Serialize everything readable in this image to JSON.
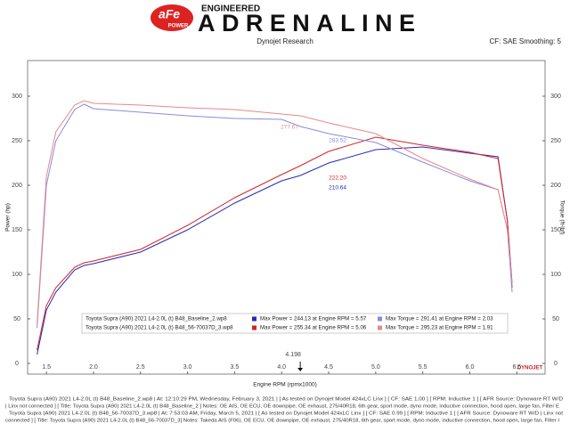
{
  "header": {
    "brand": "aFe",
    "brand_sub": "POWER",
    "tagline": "ENGINEERED",
    "title": "ADRENALINE"
  },
  "chart_data": {
    "type": "line",
    "title": "Dynojet Research",
    "subtitle": "CF: SAE Smoothing: 5",
    "x_label": "Engine RPM (rpmx1000)",
    "y_label": "Power (hp)",
    "y2_label": "Torque (ft-lbf)",
    "brand_mark": "DYNOJET",
    "x": [
      1.4,
      1.5,
      1.6,
      1.8,
      1.9,
      2.0,
      2.5,
      3.0,
      3.5,
      4.0,
      4.2,
      4.5,
      5.0,
      5.5,
      6.0,
      6.3,
      6.4,
      6.45
    ],
    "series": [
      {
        "color": "#2a2ab4",
        "values": [
          10,
          60,
          80,
          105,
          110,
          112,
          125,
          150,
          180,
          205,
          211,
          225,
          240,
          243,
          236,
          232,
          160,
          90
        ]
      },
      {
        "color": "#d42424",
        "values": [
          15,
          65,
          85,
          108,
          113,
          115,
          128,
          155,
          186,
          212,
          222,
          238,
          254,
          245,
          237,
          230,
          160,
          85
        ]
      },
      {
        "color": "#8a8ade",
        "axis": "y2",
        "values": [
          40,
          200,
          250,
          285,
          291,
          286,
          282,
          278,
          275,
          274,
          266,
          258,
          248,
          226,
          205,
          195,
          150,
          80
        ]
      },
      {
        "color": "#e48a8a",
        "axis": "y2",
        "values": [
          45,
          210,
          260,
          290,
          295,
          292,
          290,
          287,
          285,
          280,
          278,
          270,
          258,
          230,
          207,
          195,
          150,
          90
        ]
      }
    ],
    "xlim": [
      1.3,
      6.8
    ],
    "ylim": [
      -12,
      340
    ],
    "y2lim": [
      -12,
      340
    ],
    "xticks": [
      {
        "value": 1.5,
        "label": "1.5"
      },
      {
        "value": 2,
        "label": "2.0"
      },
      {
        "value": 2.5,
        "label": "2.5"
      },
      {
        "value": 3,
        "label": "3.0"
      },
      {
        "value": 3.5,
        "label": "3.5"
      },
      {
        "value": 4,
        "label": "4.0"
      },
      {
        "value": 4.5,
        "label": "4.5"
      },
      {
        "value": 5,
        "label": "5.0"
      },
      {
        "value": 5.5,
        "label": "5.5"
      },
      {
        "value": 6,
        "label": "6.0"
      },
      {
        "value": 6.5,
        "label": "6.5"
      }
    ],
    "yticks": [
      0,
      50,
      100,
      150,
      200,
      250,
      300
    ],
    "y2ticks": [
      0,
      50,
      100,
      150,
      200,
      250,
      300
    ],
    "cursor": 4.198,
    "readouts": [
      {
        "value": 277.67,
        "label": "277.67"
      },
      {
        "value": 283.52,
        "label": "283.52"
      },
      {
        "value": 222.2,
        "label": "222.20"
      },
      {
        "value": 210.64,
        "label": "210.64"
      }
    ],
    "legend_rows": [
      [
        "Toyota Supra (A90) 2021 L4-2.0L (t) B48_Baseline_2.wp8",
        "Max Power = 244.13 at Engine RPM = 5.57",
        "Max Torque = 291.41 at Engine RPM = 2.03"
      ],
      [
        "Toyota Supra (A90) 2021 L4-2.0L (t) B48_56-70037D_3.wp8",
        "Max Power = 255.34 at Engine RPM = 5.06",
        "Max Torque = 295.23 at Engine RPM = 1.91"
      ]
    ]
  },
  "footnotes": [
    "Toyota Supra (A90) 2021 L4-2.0L (t) B48_Baseline_2.wp8 | At: 12:10:29 PM, Wednesday, February 3, 2021 | [ As tested on Dynojet Model 424xLC Linx ] [ CF: SAE 1.00 ] [ RPM: Inductive 1 ] [ AFR Source: Dynoware RT W/D",
    "| Linx not connected ] [ Title: Toyota Supra (A90) 2021 L4-2.0L (t) B48_Baseline_2 ] Notes: OE AIS, OE ECU, OE downpipe, OE exhaust, 275/40R18, 6th gear, sport mode, dyno mode, inductive connection, hood open, large fan, Filter E",
    "Toyota Supra (A90) 2021 L4-2.0L (t) B48_56-70037D_3.wp8 | At: 7:53:03 AM, Friday, March 5, 2021 | [ As tested on Dynojet Model 424xLC Linx ] [ CF: SAE 0.99 ] [ RPM: Inductive 1 ] [ AFR Source: Dynoware RT W/D | Linx not",
    "connected ] [ Title: Toyota Supra (A90) 2021 L4-2.0L (t) B48_56-70037D_3] Notes: Takeda AIS (F06), OE ECU, OE downpipe, OE exhaust, 275/40R18, 6th gear, sport mode, dyno mode, inductive connection, hood open, large fan, Filter I"
  ]
}
